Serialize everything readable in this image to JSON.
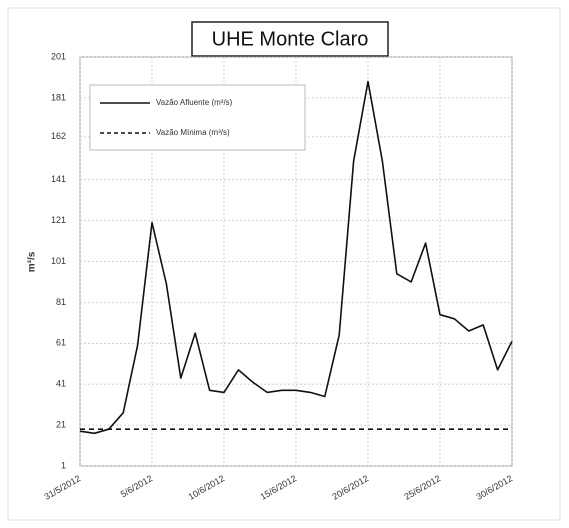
{
  "chart_data": {
    "type": "line",
    "title": "UHE Monte Claro",
    "y_label": "m³/s",
    "x": [
      "31/5/2012",
      "1/6/2012",
      "2/6/2012",
      "3/6/2012",
      "4/6/2012",
      "5/6/2012",
      "6/6/2012",
      "7/6/2012",
      "8/6/2012",
      "9/6/2012",
      "10/6/2012",
      "11/6/2012",
      "12/6/2012",
      "13/6/2012",
      "14/6/2012",
      "15/6/2012",
      "16/6/2012",
      "17/6/2012",
      "18/6/2012",
      "19/6/2012",
      "20/6/2012",
      "21/6/2012",
      "22/6/2012",
      "23/6/2012",
      "24/6/2012",
      "25/6/2012",
      "26/6/2012",
      "27/6/2012",
      "28/6/2012",
      "29/6/2012",
      "30/6/2012"
    ],
    "xticks": [
      "31/5/2012",
      "5/6/2012",
      "10/6/2012",
      "15/6/2012",
      "20/6/2012",
      "25/6/2012",
      "30/6/2012"
    ],
    "ylim": [
      1,
      201
    ],
    "yticks": [
      1,
      21,
      41,
      61,
      81,
      101,
      121,
      141,
      162,
      181,
      201
    ],
    "grid": true,
    "series": [
      {
        "name": "Vazão Afluente (m³/s)",
        "color": "#111111",
        "dash": false,
        "values": [
          18,
          17,
          19,
          27,
          60,
          120,
          90,
          44,
          66,
          38,
          37,
          48,
          42,
          37,
          38,
          38,
          37,
          35,
          65,
          150,
          189,
          150,
          95,
          91,
          110,
          75,
          73,
          67,
          70,
          48,
          62
        ]
      },
      {
        "name": "Vazão Mínima (m³/s)",
        "color": "#111111",
        "dash": true,
        "values": [
          19,
          19,
          19,
          19,
          19,
          19,
          19,
          19,
          19,
          19,
          19,
          19,
          19,
          19,
          19,
          19,
          19,
          19,
          19,
          19,
          19,
          19,
          19,
          19,
          19,
          19,
          19,
          19,
          19,
          19,
          19
        ]
      }
    ]
  }
}
